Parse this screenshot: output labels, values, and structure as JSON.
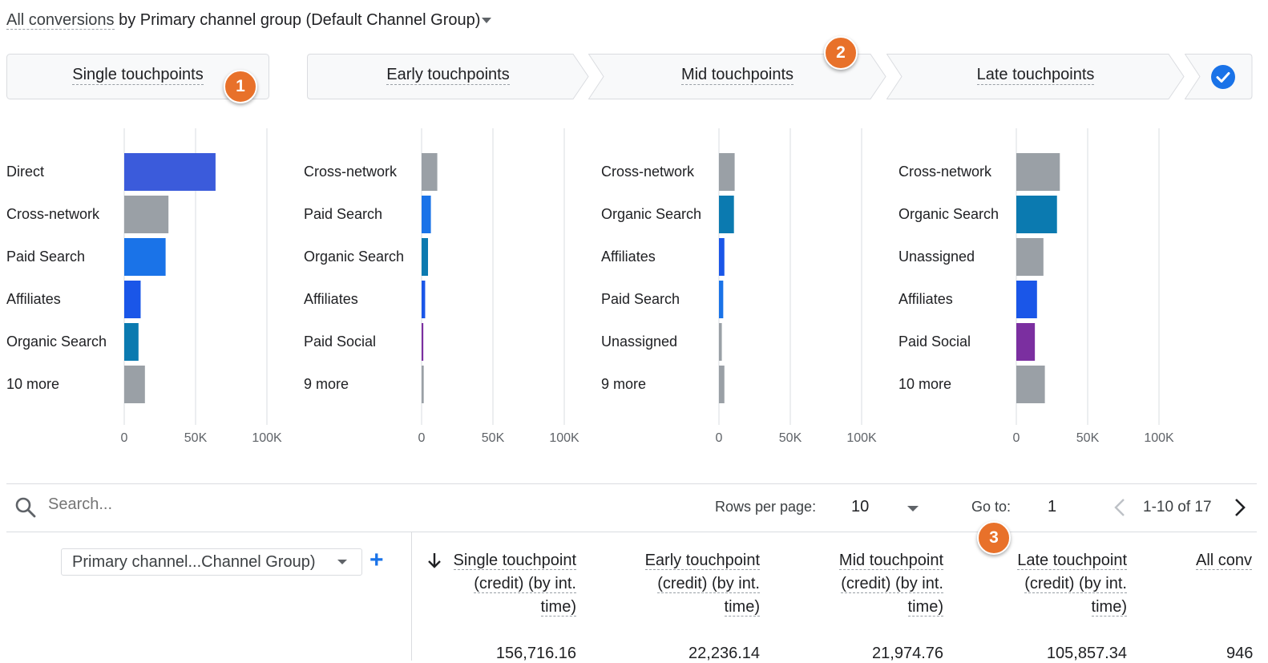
{
  "title": {
    "metric": "All conversions",
    "by": "by",
    "dimension": "Primary channel group (Default Channel Group)"
  },
  "stages": [
    {
      "label": "Single touchpoints",
      "badge": "1"
    },
    {
      "label": "Early touchpoints"
    },
    {
      "label": "Mid touchpoints",
      "badge": "2"
    },
    {
      "label": "Late touchpoints"
    },
    {
      "label": "",
      "icon": "check-circle-icon"
    }
  ],
  "colors": {
    "accent": "#1a73e8",
    "badge": "#e8712a",
    "gray_bar": "#9aa0a6",
    "direct": "#3b5bdb",
    "paid_search": "#1a73e8",
    "affiliates": "#1a56e8",
    "organic_search": "#0b7ab0",
    "paid_social": "#7b2fa0"
  },
  "chart_data": [
    {
      "type": "bar",
      "orientation": "horizontal",
      "title": "Single touchpoints",
      "categories": [
        "Direct",
        "Cross-network",
        "Paid Search",
        "Affiliates",
        "Organic Search",
        "10 more"
      ],
      "values": [
        64000,
        31000,
        29000,
        11500,
        10000,
        14500
      ],
      "colors": [
        "#3b5bdb",
        "#9aa0a6",
        "#1a73e8",
        "#1a56e8",
        "#0b7ab0",
        "#9aa0a6"
      ],
      "ticks": [
        "0",
        "50K",
        "100K"
      ],
      "xlim": [
        0,
        100000
      ]
    },
    {
      "type": "bar",
      "orientation": "horizontal",
      "title": "Early touchpoints",
      "categories": [
        "Cross-network",
        "Paid Search",
        "Organic Search",
        "Affiliates",
        "Paid Social",
        "9 more"
      ],
      "values": [
        11000,
        6500,
        4500,
        2500,
        1200,
        1500
      ],
      "colors": [
        "#9aa0a6",
        "#1a73e8",
        "#0b7ab0",
        "#1a56e8",
        "#7b2fa0",
        "#9aa0a6"
      ],
      "ticks": [
        "0",
        "50K",
        "100K"
      ],
      "xlim": [
        0,
        100000
      ]
    },
    {
      "type": "bar",
      "orientation": "horizontal",
      "title": "Mid touchpoints",
      "categories": [
        "Cross-network",
        "Organic Search",
        "Affiliates",
        "Paid Search",
        "Unassigned",
        "9 more"
      ],
      "values": [
        11000,
        10500,
        3800,
        3000,
        2000,
        3800
      ],
      "colors": [
        "#9aa0a6",
        "#0b7ab0",
        "#1a56e8",
        "#1a73e8",
        "#9aa0a6",
        "#9aa0a6"
      ],
      "ticks": [
        "0",
        "50K",
        "100K"
      ],
      "xlim": [
        0,
        100000
      ]
    },
    {
      "type": "bar",
      "orientation": "horizontal",
      "title": "Late touchpoints",
      "categories": [
        "Cross-network",
        "Organic Search",
        "Unassigned",
        "Affiliates",
        "Paid Social",
        "10 more"
      ],
      "values": [
        30500,
        28500,
        19000,
        14500,
        13000,
        20000
      ],
      "colors": [
        "#9aa0a6",
        "#0b7ab0",
        "#9aa0a6",
        "#1a56e8",
        "#7b2fa0",
        "#9aa0a6"
      ],
      "ticks": [
        "0",
        "50K",
        "100K"
      ],
      "xlim": [
        0,
        100000
      ]
    }
  ],
  "toolbar": {
    "search_placeholder": "Search...",
    "rows_per_page_label": "Rows per page:",
    "rows_per_page_value": "10",
    "goto_label": "Go to:",
    "goto_value": "1",
    "range_text": "1-10 of 17",
    "badge": "3"
  },
  "table": {
    "dimension_select": "Primary channel...Channel Group)",
    "add_icon": "+",
    "columns": [
      {
        "lines": [
          "Single touchpoint",
          "(credit) (by int.",
          "time)"
        ],
        "sorted": true
      },
      {
        "lines": [
          "Early touchpoint",
          "(credit) (by int.",
          "time)"
        ]
      },
      {
        "lines": [
          "Mid touchpoint",
          "(credit) (by int.",
          "time)"
        ]
      },
      {
        "lines": [
          "Late touchpoint",
          "(credit) (by int.",
          "time)"
        ]
      },
      {
        "lines": [
          "All conv"
        ]
      }
    ],
    "first_row_partial": [
      "156,716.16",
      "22,236.14",
      "21,974.76",
      "105,857.34",
      "946"
    ]
  }
}
